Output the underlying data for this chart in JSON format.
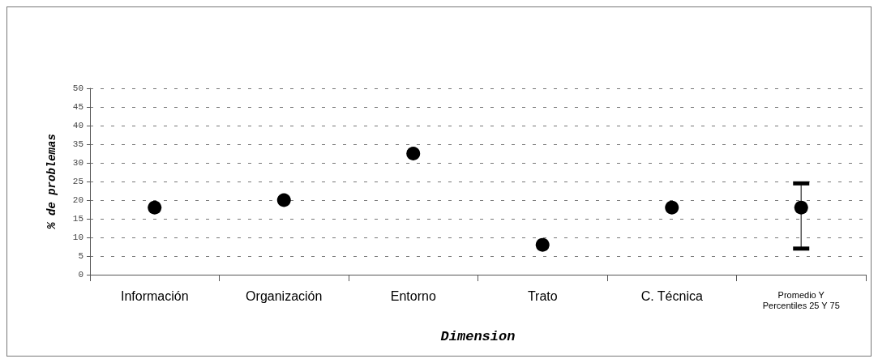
{
  "chart_data": {
    "type": "scatter",
    "xlabel": "Dimension",
    "ylabel": "% de problemas",
    "categories": [
      "Información",
      "Organización",
      "Entorno",
      "Trato",
      "C. Técnica",
      "Promedio Y\nPercentiles 25 Y 75"
    ],
    "values": [
      18,
      20,
      32.5,
      8,
      18,
      18
    ],
    "errors": [
      null,
      null,
      null,
      null,
      null,
      [
        7,
        24.5
      ]
    ],
    "color": "#000000",
    "marker": "circle",
    "grid": "y",
    "ylim": [
      0,
      50
    ],
    "yticks": [
      0,
      5,
      10,
      15,
      20,
      25,
      30,
      35,
      40,
      45,
      50
    ]
  }
}
